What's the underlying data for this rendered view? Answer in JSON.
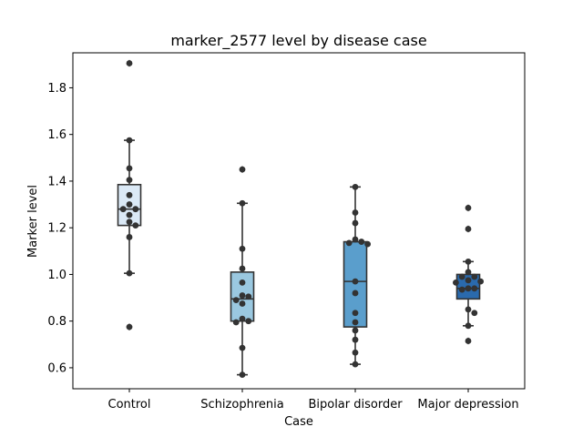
{
  "chart_data": {
    "type": "box",
    "title": "marker_2577 level by disease case",
    "xlabel": "Case",
    "ylabel": "Marker level",
    "ylim": [
      0.51,
      1.95
    ],
    "yticks": [
      0.6,
      0.8,
      1.0,
      1.2,
      1.4,
      1.6,
      1.8
    ],
    "ytick_labels": [
      "0.6",
      "0.8",
      "1.0",
      "1.2",
      "1.4",
      "1.6",
      "1.8"
    ],
    "categories": [
      "Control",
      "Schizophrenia",
      "Bipolar disorder",
      "Major depression"
    ],
    "colors": [
      "#dbe9f6",
      "#9ac8e0",
      "#5a9ecc",
      "#2a6aad"
    ],
    "groups": [
      {
        "category": "Control",
        "q1": 1.21,
        "median": 1.28,
        "q3": 1.385,
        "whisker_low": 1.005,
        "whisker_high": 1.575,
        "outliers": [
          1.905,
          0.775
        ],
        "points": [
          1.905,
          1.575,
          1.455,
          1.405,
          1.34,
          1.3,
          1.28,
          1.28,
          1.255,
          1.225,
          1.21,
          1.16,
          1.005,
          0.775
        ]
      },
      {
        "category": "Schizophrenia",
        "q1": 0.8,
        "median": 0.895,
        "q3": 1.01,
        "whisker_low": 0.57,
        "whisker_high": 1.305,
        "outliers": [
          1.45
        ],
        "points": [
          1.45,
          1.305,
          1.11,
          1.025,
          0.965,
          0.91,
          0.905,
          0.89,
          0.875,
          0.81,
          0.8,
          0.795,
          0.685,
          0.57
        ]
      },
      {
        "category": "Bipolar disorder",
        "q1": 0.775,
        "median": 0.97,
        "q3": 1.14,
        "whisker_low": 0.615,
        "whisker_high": 1.375,
        "outliers": [],
        "points": [
          1.375,
          1.265,
          1.22,
          1.15,
          1.14,
          1.135,
          1.13,
          0.97,
          0.92,
          0.835,
          0.795,
          0.76,
          0.72,
          0.665,
          0.615
        ]
      },
      {
        "category": "Major depression",
        "q1": 0.895,
        "median": 0.94,
        "q3": 1.0,
        "whisker_low": 0.78,
        "whisker_high": 1.055,
        "outliers": [
          1.285,
          1.195,
          0.715
        ],
        "points": [
          1.285,
          1.195,
          1.055,
          1.01,
          0.99,
          0.99,
          0.975,
          0.97,
          0.965,
          0.94,
          0.94,
          0.935,
          0.85,
          0.835,
          0.78,
          0.715
        ]
      }
    ]
  }
}
